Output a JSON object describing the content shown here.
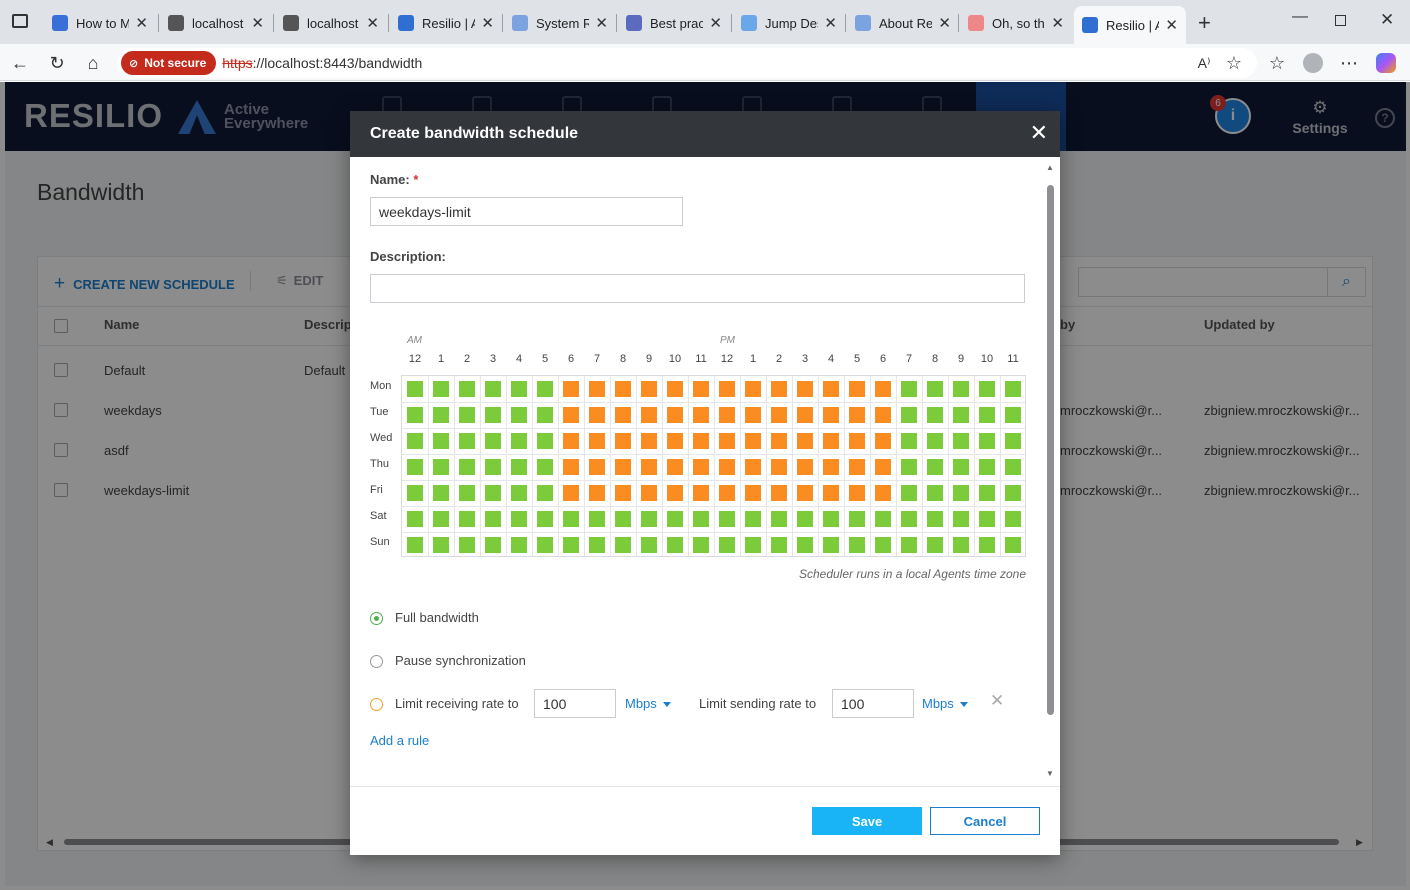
{
  "browser": {
    "tabs": [
      {
        "title": "How to M",
        "fav": "doc",
        "color": "#3a6fd8"
      },
      {
        "title": "localhost",
        "fav": "page",
        "color": "#555"
      },
      {
        "title": "localhost",
        "fav": "page",
        "color": "#555"
      },
      {
        "title": "Resilio | A",
        "fav": "resilio",
        "color": "#2f6fd1"
      },
      {
        "title": "System Re",
        "fav": "resilio",
        "color": "#7aa3e0"
      },
      {
        "title": "Best pract",
        "fav": "hex",
        "color": "#5b6bbf"
      },
      {
        "title": "Jump Des",
        "fav": "cloud",
        "color": "#6aa7e8"
      },
      {
        "title": "About Res",
        "fav": "resilio",
        "color": "#7aa3e0"
      },
      {
        "title": "Oh, so the",
        "fav": "star",
        "color": "#e88"
      },
      {
        "title": "Resilio | A",
        "fav": "resilio",
        "color": "#2f6fd1"
      }
    ],
    "not_secure": "Not secure",
    "url_scheme": "https",
    "url_rest": "://localhost:8443/bandwidth"
  },
  "app": {
    "logo": "RESILIO",
    "brand_line1": "Active",
    "brand_line2": "Everywhere",
    "info_badge": "6",
    "info_glyph": "i",
    "settings_label": "Settings",
    "help_glyph": "?"
  },
  "page": {
    "title": "Bandwidth",
    "create_label": "CREATE NEW SCHEDULE",
    "edit_label": "EDIT",
    "columns": [
      "Name",
      "Descrip",
      "by",
      "Updated by"
    ],
    "rows": [
      {
        "name": "Default",
        "desc": "Default",
        "created": "",
        "updated": ""
      },
      {
        "name": "weekdays",
        "desc": "",
        "created": "mroczkowski@r...",
        "updated": "zbigniew.mroczkowski@r..."
      },
      {
        "name": "asdf",
        "desc": "",
        "created": "mroczkowski@r...",
        "updated": "zbigniew.mroczkowski@r..."
      },
      {
        "name": "weekdays-limit",
        "desc": "",
        "created": "mroczkowski@r...",
        "updated": "zbigniew.mroczkowski@r..."
      }
    ]
  },
  "modal": {
    "title": "Create bandwidth schedule",
    "close_glyph": "✕",
    "name_label": "Name:",
    "required_mark": "*",
    "name_value": "weekdays-limit",
    "description_label": "Description:",
    "description_value": "",
    "am_label": "AM",
    "pm_label": "PM",
    "hours": [
      "12",
      "1",
      "2",
      "3",
      "4",
      "5",
      "6",
      "7",
      "8",
      "9",
      "10",
      "11",
      "12",
      "1",
      "2",
      "3",
      "4",
      "5",
      "6",
      "7",
      "8",
      "9",
      "10",
      "11"
    ],
    "days": [
      "Mon",
      "Tue",
      "Wed",
      "Thu",
      "Fri",
      "Sat",
      "Sun"
    ],
    "schedule": [
      "GGGGGGOOOOOOOOOOOOOGGGGG",
      "GGGGGGOOOOOOOOOOOOOGGGGG",
      "GGGGGGOOOOOOOOOOOOOGGGGG",
      "GGGGGGOOOOOOOOOOOOOGGGGG",
      "GGGGGGOOOOOOOOOOOOOGGGGG",
      "GGGGGGGGGGGGGGGGGGGGGGGG",
      "GGGGGGGGGGGGGGGGGGGGGGGG"
    ],
    "colors": {
      "G": "#7ccb3a",
      "O": "#fb8c22"
    },
    "tz_note": "Scheduler runs in a local Agents time zone",
    "opt_full": "Full bandwidth",
    "opt_pause": "Pause synchronization",
    "limit_recv_label": "Limit receiving rate to",
    "limit_recv_value": "100",
    "limit_recv_unit": "Mbps",
    "limit_send_label": "Limit sending rate to",
    "limit_send_value": "100",
    "limit_send_unit": "Mbps",
    "remove_glyph": "✕",
    "add_rule": "Add a rule",
    "save": "Save",
    "cancel": "Cancel"
  }
}
